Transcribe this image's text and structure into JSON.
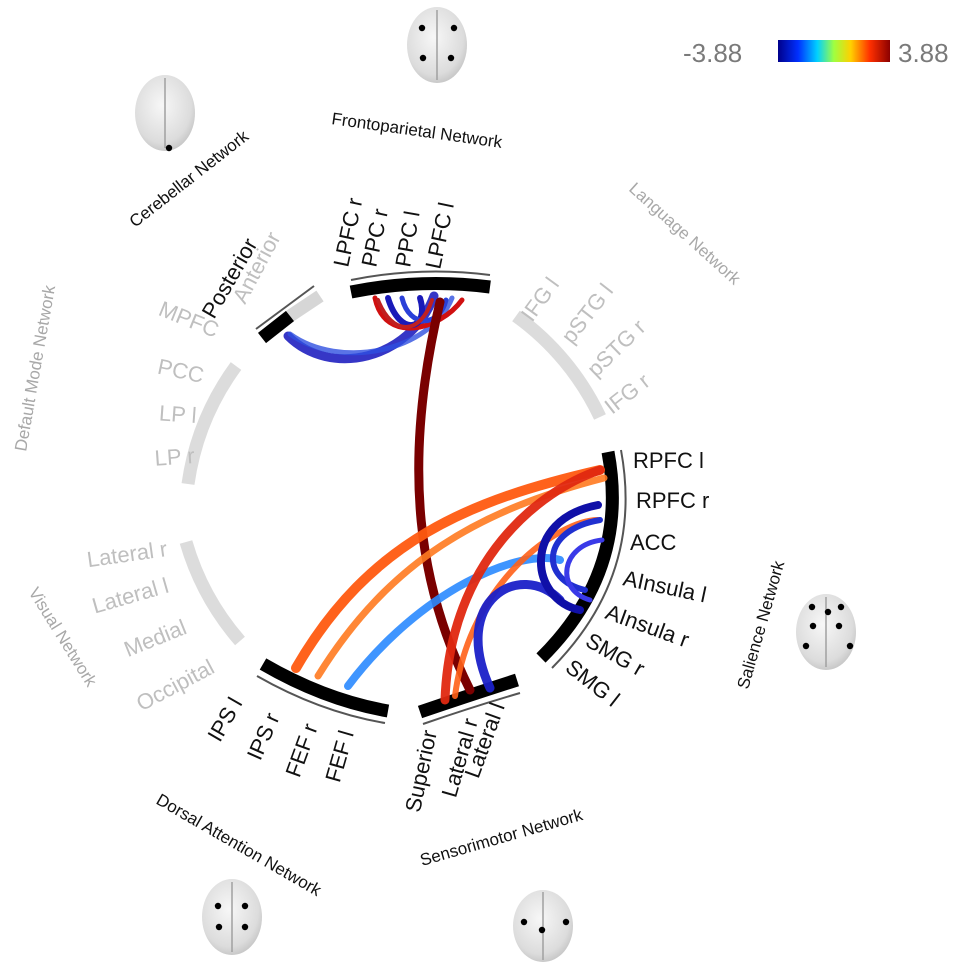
{
  "colorbar": {
    "min_label": "-3.88",
    "max_label": "3.88",
    "colors": [
      "#00008b",
      "#0030ff",
      "#00d0ff",
      "#a0ff40",
      "#ffd000",
      "#ff3000",
      "#8b0000"
    ]
  },
  "networks": {
    "frontoparietal": {
      "name": "Frontoparietal Network",
      "rois": [
        "LPFC r",
        "PPC r",
        "PPC l",
        "LPFC l"
      ]
    },
    "cerebellar": {
      "name": "Cerebellar Network",
      "rois": [
        "Posterior",
        "Anterior"
      ]
    },
    "language": {
      "name": "Language Network",
      "rois": [
        "IFG l",
        "pSTG l",
        "pSTG r",
        "IFG r"
      ]
    },
    "salience": {
      "name": "Salience Network",
      "rois": [
        "RPFC l",
        "RPFC r",
        "ACC",
        "AInsula l",
        "AInsula r",
        "SMG r",
        "SMG l"
      ]
    },
    "sensorimotor": {
      "name": "Sensorimotor Network",
      "rois": [
        "Superior",
        "Lateral r",
        "Lateral l"
      ]
    },
    "dorsal_attention": {
      "name": "Dorsal Attention Network",
      "rois": [
        "IPS l",
        "IPS r",
        "FEF r",
        "FEF l"
      ]
    },
    "visual": {
      "name": "Visual Network",
      "rois": [
        "Lateral r",
        "Lateral l",
        "Medial",
        "Occipital"
      ]
    },
    "default_mode": {
      "name": "Default Mode Network",
      "rois": [
        "MPFC",
        "PCC",
        "LP l",
        "LP r"
      ]
    }
  }
}
